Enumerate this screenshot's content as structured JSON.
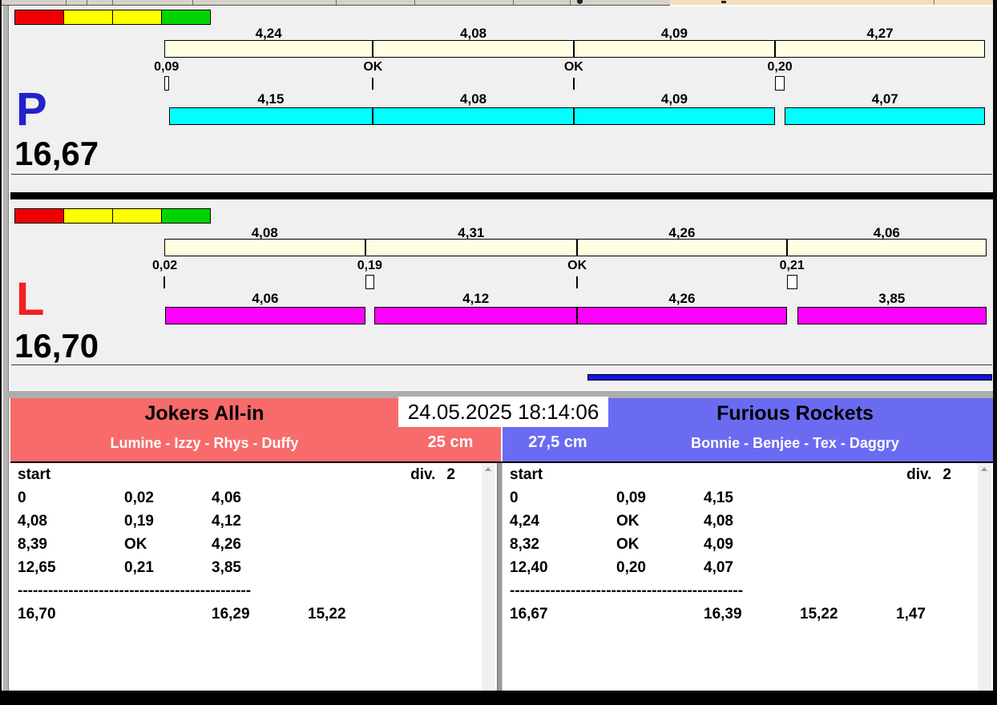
{
  "clock": "24.05.2025 18:14:06",
  "colors": {
    "track_beige": "#fffee1",
    "lane_background": "#f0f0f0",
    "blue_line": "#1414dd",
    "gray_band": "#adadad",
    "light_red": "#ee0000",
    "light_yellow": "#ffff00",
    "light_green": "#00d400"
  },
  "lanes": [
    {
      "letter": "P",
      "letter_color": "#2222cc",
      "total": "16,67",
      "bar_color": "#00ffff",
      "lights": [
        "#ee0000",
        "#ffff00",
        "#ffff00",
        "#00d400"
      ],
      "target": {
        "labels": [
          "4,24",
          "4,08",
          "4,09",
          "4,27"
        ],
        "values": [
          4.24,
          4.08,
          4.09,
          4.27
        ]
      },
      "faults": {
        "labels": [
          "0,09",
          "OK",
          "OK",
          "0,20"
        ],
        "values": [
          0.09,
          0,
          0,
          0.2
        ]
      },
      "actual": {
        "labels": [
          "4,15",
          "4,08",
          "4,09",
          "4,07"
        ],
        "values": [
          4.15,
          4.08,
          4.09,
          4.07
        ]
      },
      "has_blue_line": false
    },
    {
      "letter": "L",
      "letter_color": "#ee2222",
      "total": "16,70",
      "bar_color": "#ff00ff",
      "lights": [
        "#ee0000",
        "#ffff00",
        "#ffff00",
        "#00d400"
      ],
      "target": {
        "labels": [
          "4,08",
          "4,31",
          "4,26",
          "4,06"
        ],
        "values": [
          4.08,
          4.31,
          4.26,
          4.06
        ]
      },
      "faults": {
        "labels": [
          "0,02",
          "0,19",
          "OK",
          "0,21"
        ],
        "values": [
          0.02,
          0.19,
          0,
          0.21
        ]
      },
      "actual": {
        "labels": [
          "4,06",
          "4,12",
          "4,26",
          "3,85"
        ],
        "values": [
          4.06,
          4.12,
          4.26,
          3.85
        ]
      },
      "has_blue_line": true
    }
  ],
  "panels": [
    {
      "name": "Jokers All-in",
      "players": "Lumine - Izzy - Rhys - Duffy",
      "distance": "25 cm",
      "header_color": "#f76b6b",
      "list": {
        "start_label": "start",
        "div_label": "div.",
        "div_value": "2",
        "rows": [
          [
            "0",
            "0,02",
            "4,06"
          ],
          [
            "4,08",
            "0,19",
            "4,12"
          ],
          [
            "8,39",
            "OK",
            "4,26"
          ],
          [
            "12,65",
            "0,21",
            "3,85"
          ]
        ],
        "dashes": "----------------------------------------------",
        "totals": [
          "16,70",
          "",
          "16,29",
          "15,22",
          ""
        ]
      }
    },
    {
      "name": "Furious Rockets",
      "players": "Bonnie - Benjee - Tex - Daggry",
      "distance": "27,5 cm",
      "header_color": "#6b6bf2",
      "list": {
        "start_label": "start",
        "div_label": "div.",
        "div_value": "2",
        "rows": [
          [
            "0",
            "0,09",
            "4,15"
          ],
          [
            "4,24",
            "OK",
            "4,08"
          ],
          [
            "8,32",
            "OK",
            "4,09"
          ],
          [
            "12,40",
            "0,20",
            "4,07"
          ]
        ],
        "dashes": "----------------------------------------------",
        "totals": [
          "16,67",
          "",
          "16,39",
          "15,22",
          "1,47"
        ]
      }
    }
  ]
}
